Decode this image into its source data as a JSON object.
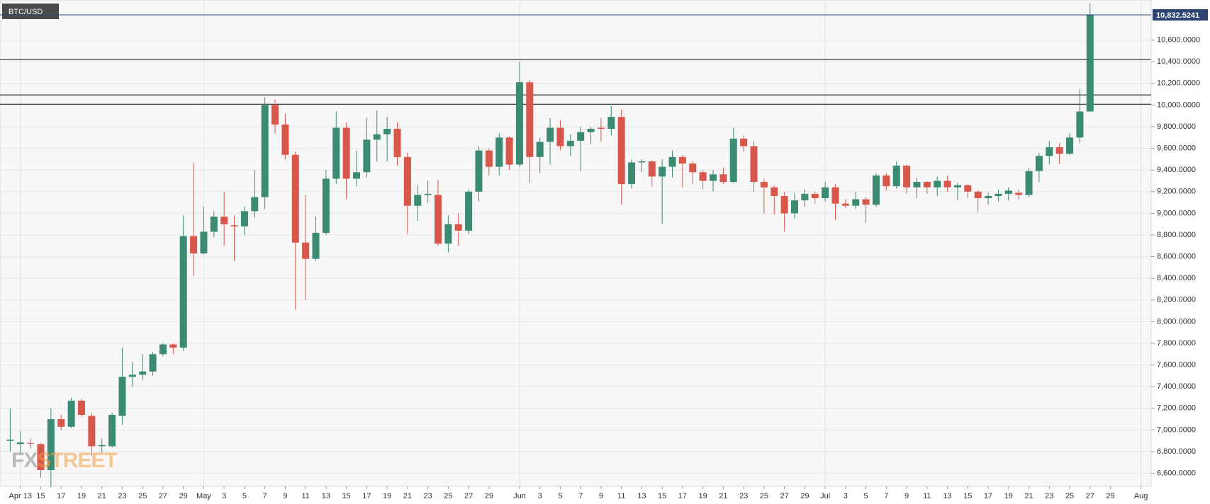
{
  "chart_data": {
    "type": "candlestick",
    "series": [
      {
        "name": "BTC/USD",
        "x": [
          "Apr 12",
          "Apr 13",
          "Apr 14",
          "Apr 15",
          "Apr 16",
          "Apr 17",
          "Apr 18",
          "Apr 19",
          "Apr 20",
          "Apr 21",
          "Apr 22",
          "Apr 23",
          "Apr 24",
          "Apr 25",
          "Apr 26",
          "Apr 27",
          "Apr 28",
          "Apr 29",
          "Apr 30",
          "May 1",
          "May 2",
          "May 3",
          "May 4",
          "May 5",
          "May 6",
          "May 7",
          "May 8",
          "May 9",
          "May 10",
          "May 11",
          "May 12",
          "May 13",
          "May 14",
          "May 15",
          "May 16",
          "May 17",
          "May 18",
          "May 19",
          "May 20",
          "May 21",
          "May 22",
          "May 23",
          "May 24",
          "May 25",
          "May 26",
          "May 27",
          "May 28",
          "May 29",
          "May 30",
          "May 31",
          "Jun 1",
          "Jun 2",
          "Jun 3",
          "Jun 4",
          "Jun 5",
          "Jun 6",
          "Jun 7",
          "Jun 8",
          "Jun 9",
          "Jun 10",
          "Jun 11",
          "Jun 12",
          "Jun 13",
          "Jun 14",
          "Jun 15",
          "Jun 16",
          "Jun 17",
          "Jun 18",
          "Jun 19",
          "Jun 20",
          "Jun 21",
          "Jun 22",
          "Jun 23",
          "Jun 24",
          "Jun 25",
          "Jun 26",
          "Jun 27",
          "Jun 28",
          "Jun 29",
          "Jun 30",
          "Jul 1",
          "Jul 2",
          "Jul 3",
          "Jul 4",
          "Jul 5",
          "Jul 6",
          "Jul 7",
          "Jul 8",
          "Jul 9",
          "Jul 10",
          "Jul 11",
          "Jul 12",
          "Jul 13",
          "Jul 14",
          "Jul 15",
          "Jul 16",
          "Jul 17",
          "Jul 18",
          "Jul 19",
          "Jul 20",
          "Jul 21",
          "Jul 22",
          "Jul 23",
          "Jul 24",
          "Jul 25",
          "Jul 26",
          "Jul 27"
        ],
        "open": [
          6900,
          6870,
          6880,
          6870,
          6630,
          7100,
          7030,
          7270,
          7130,
          6850,
          6850,
          7130,
          7490,
          7510,
          7540,
          7700,
          7790,
          7760,
          8790,
          8630,
          8830,
          8970,
          8890,
          8880,
          9020,
          9150,
          10000,
          9820,
          9540,
          8730,
          8580,
          8820,
          9320,
          9790,
          9320,
          9380,
          9680,
          9730,
          9780,
          9520,
          9070,
          9170,
          9170,
          8720,
          8900,
          8840,
          9200,
          9580,
          9430,
          9700,
          9450,
          10210,
          9520,
          9660,
          9790,
          9620,
          9670,
          9750,
          9790,
          9780,
          9890,
          9270,
          9470,
          9480,
          9340,
          9430,
          9520,
          9460,
          9380,
          9300,
          9360,
          9290,
          9690,
          9620,
          9290,
          9240,
          9160,
          9000,
          9120,
          9180,
          9140,
          9240,
          9090,
          9070,
          9130,
          9080,
          9350,
          9250,
          9440,
          9240,
          9290,
          9240,
          9300,
          9240,
          9260,
          9200,
          9140,
          9160,
          9180,
          9190,
          9170,
          9390,
          9530,
          9610,
          9550,
          9700,
          9940
        ],
        "high": [
          7200,
          6990,
          6920,
          6880,
          7200,
          7140,
          7300,
          7290,
          7160,
          6920,
          7160,
          7760,
          7630,
          7700,
          7720,
          7800,
          7800,
          8980,
          9470,
          9060,
          9020,
          9200,
          8980,
          9060,
          9400,
          10070,
          10050,
          9920,
          9570,
          9170,
          8970,
          9400,
          9940,
          9840,
          9580,
          9880,
          9950,
          9890,
          9840,
          9560,
          9260,
          9300,
          9310,
          8980,
          9000,
          9220,
          9620,
          9600,
          9740,
          9710,
          10400,
          10230,
          9700,
          9880,
          9860,
          9730,
          9800,
          9800,
          9880,
          9990,
          9960,
          9500,
          9500,
          9490,
          9500,
          9580,
          9540,
          9480,
          9400,
          9400,
          9420,
          9790,
          9720,
          9670,
          9320,
          9260,
          9200,
          9190,
          9220,
          9200,
          9290,
          9270,
          9130,
          9200,
          9150,
          9370,
          9370,
          9480,
          9450,
          9330,
          9300,
          9340,
          9350,
          9280,
          9270,
          9210,
          9190,
          9220,
          9240,
          9220,
          9420,
          9560,
          9670,
          9650,
          9740,
          10150,
          10940
        ],
        "low": [
          6800,
          6780,
          6830,
          6560,
          6470,
          7000,
          7020,
          7120,
          6760,
          6790,
          6840,
          7050,
          7400,
          7460,
          7500,
          7680,
          7700,
          7730,
          8420,
          8620,
          8780,
          8700,
          8560,
          8800,
          8960,
          9040,
          9740,
          9500,
          8110,
          8200,
          8560,
          8800,
          9270,
          9130,
          9250,
          9330,
          9480,
          9480,
          9440,
          8810,
          8930,
          9100,
          8700,
          8640,
          8700,
          8810,
          9110,
          9350,
          9350,
          9400,
          9430,
          9280,
          9370,
          9450,
          9580,
          9530,
          9390,
          9640,
          9660,
          9720,
          9080,
          9230,
          9380,
          9250,
          8900,
          9330,
          9240,
          9270,
          9220,
          9200,
          9270,
          9280,
          9570,
          9200,
          9000,
          8990,
          8830,
          8950,
          9060,
          9090,
          9110,
          8940,
          9050,
          9040,
          8910,
          9060,
          9210,
          9230,
          9180,
          9140,
          9180,
          9160,
          9200,
          9120,
          9140,
          9010,
          9080,
          9110,
          9120,
          9130,
          9150,
          9290,
          9450,
          9460,
          9540,
          9650,
          9940
        ],
        "close": [
          6910,
          6885,
          6875,
          6630,
          7100,
          7030,
          7270,
          7140,
          6850,
          6860,
          7140,
          7490,
          7510,
          7540,
          7700,
          7790,
          7760,
          8790,
          8630,
          8830,
          8970,
          8900,
          8880,
          9020,
          9150,
          10000,
          9820,
          9540,
          8730,
          8580,
          8820,
          9320,
          9790,
          9320,
          9380,
          9680,
          9730,
          9780,
          9520,
          9070,
          9170,
          9180,
          8720,
          8900,
          8840,
          9200,
          9580,
          9430,
          9700,
          9450,
          10210,
          9520,
          9660,
          9790,
          9620,
          9670,
          9750,
          9780,
          9780,
          9890,
          9270,
          9470,
          9480,
          9340,
          9430,
          9520,
          9460,
          9380,
          9300,
          9360,
          9290,
          9690,
          9620,
          9290,
          9240,
          9160,
          9000,
          9120,
          9180,
          9140,
          9240,
          9090,
          9070,
          9130,
          9080,
          9350,
          9250,
          9440,
          9240,
          9290,
          9240,
          9300,
          9240,
          9260,
          9200,
          9140,
          9160,
          9180,
          9210,
          9170,
          9390,
          9530,
          9610,
          9550,
          9700,
          9940,
          10832.5241
        ]
      }
    ],
    "up_color": "#3b8a73",
    "down_color": "#d9574a",
    "last_price": {
      "value": 10832.5241,
      "label": "10,832.5241"
    },
    "last_price_color": "#2b4470",
    "hlines": [
      10007,
      10093,
      10420
    ],
    "xlim": [
      "Apr 11",
      "Aug 2"
    ],
    "xticks": [
      "Apr 13",
      {
        "value": "Apr 15",
        "label": "15"
      },
      {
        "value": "Apr 17",
        "label": "17"
      },
      {
        "value": "Apr 19",
        "label": "19"
      },
      {
        "value": "Apr 21",
        "label": "21"
      },
      {
        "value": "Apr 23",
        "label": "23"
      },
      {
        "value": "Apr 25",
        "label": "25"
      },
      {
        "value": "Apr 27",
        "label": "27"
      },
      {
        "value": "Apr 29",
        "label": "29"
      },
      {
        "value": "May 1",
        "label": "May"
      },
      {
        "value": "May 3",
        "label": "3"
      },
      {
        "value": "May 5",
        "label": "5"
      },
      {
        "value": "May 7",
        "label": "7"
      },
      {
        "value": "May 9",
        "label": "9"
      },
      {
        "value": "May 11",
        "label": "11"
      },
      {
        "value": "May 13",
        "label": "13"
      },
      {
        "value": "May 15",
        "label": "15"
      },
      {
        "value": "May 17",
        "label": "17"
      },
      {
        "value": "May 19",
        "label": "19"
      },
      {
        "value": "May 21",
        "label": "21"
      },
      {
        "value": "May 23",
        "label": "23"
      },
      {
        "value": "May 25",
        "label": "25"
      },
      {
        "value": "May 27",
        "label": "27"
      },
      {
        "value": "May 29",
        "label": "29"
      },
      {
        "value": "Jun 1",
        "label": "Jun"
      },
      {
        "value": "Jun 3",
        "label": "3"
      },
      {
        "value": "Jun 5",
        "label": "5"
      },
      {
        "value": "Jun 7",
        "label": "7"
      },
      {
        "value": "Jun 9",
        "label": "9"
      },
      {
        "value": "Jun 11",
        "label": "11"
      },
      {
        "value": "Jun 13",
        "label": "13"
      },
      {
        "value": "Jun 15",
        "label": "15"
      },
      {
        "value": "Jun 17",
        "label": "17"
      },
      {
        "value": "Jun 19",
        "label": "19"
      },
      {
        "value": "Jun 21",
        "label": "21"
      },
      {
        "value": "Jun 23",
        "label": "23"
      },
      {
        "value": "Jun 25",
        "label": "25"
      },
      {
        "value": "Jun 27",
        "label": "27"
      },
      {
        "value": "Jun 29",
        "label": "29"
      },
      {
        "value": "Jul 1",
        "label": "Jul"
      },
      {
        "value": "Jul 3",
        "label": "3"
      },
      {
        "value": "Jul 5",
        "label": "5"
      },
      {
        "value": "Jul 7",
        "label": "7"
      },
      {
        "value": "Jul 9",
        "label": "9"
      },
      {
        "value": "Jul 11",
        "label": "11"
      },
      {
        "value": "Jul 13",
        "label": "13"
      },
      {
        "value": "Jul 15",
        "label": "15"
      },
      {
        "value": "Jul 17",
        "label": "17"
      },
      {
        "value": "Jul 19",
        "label": "19"
      },
      {
        "value": "Jul 21",
        "label": "21"
      },
      {
        "value": "Jul 23",
        "label": "23"
      },
      {
        "value": "Jul 25",
        "label": "25"
      },
      {
        "value": "Jul 27",
        "label": "27"
      },
      {
        "value": "Jul 29",
        "label": "29"
      },
      {
        "value": "Aug 1",
        "label": "Aug"
      }
    ],
    "ylim": [
      6480,
      10950
    ],
    "yticks": [
      {
        "value": 6600,
        "label": "6,600.0000"
      },
      {
        "value": 6800,
        "label": "6,800.0000"
      },
      {
        "value": 7000,
        "label": "7,000.0000"
      },
      {
        "value": 7200,
        "label": "7,200.0000"
      },
      {
        "value": 7400,
        "label": "7,400.0000"
      },
      {
        "value": 7600,
        "label": "7,600.0000"
      },
      {
        "value": 7800,
        "label": "7,800.0000"
      },
      {
        "value": 8000,
        "label": "8,000.0000"
      },
      {
        "value": 8200,
        "label": "8,200.0000"
      },
      {
        "value": 8400,
        "label": "8,400.0000"
      },
      {
        "value": 8600,
        "label": "8,600.0000"
      },
      {
        "value": 8800,
        "label": "8,800.0000"
      },
      {
        "value": 9000,
        "label": "9,000.0000"
      },
      {
        "value": 9200,
        "label": "9,200.0000"
      },
      {
        "value": 9400,
        "label": "9,400.0000"
      },
      {
        "value": 9600,
        "label": "9,600.0000"
      },
      {
        "value": 9800,
        "label": "9,800.0000"
      },
      {
        "value": 10000,
        "label": "10,000.0000"
      },
      {
        "value": 10200,
        "label": "10,200.0000"
      },
      {
        "value": 10400,
        "label": "10,400.0000"
      },
      {
        "value": 10600,
        "label": "10,600.0000"
      }
    ],
    "grid": true,
    "watermark": [
      "FX",
      "STREET"
    ]
  }
}
